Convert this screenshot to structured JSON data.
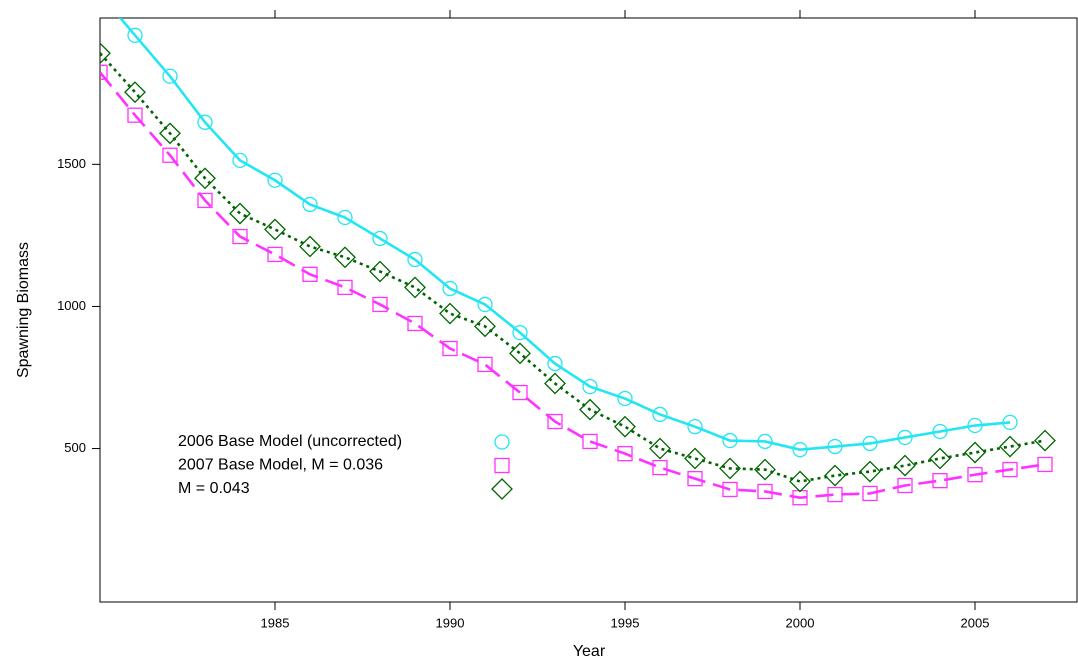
{
  "chart_data": {
    "type": "line",
    "x_label": "Year",
    "y_label": "Spawning Biomass",
    "x": [
      1980,
      1981,
      1982,
      1983,
      1984,
      1985,
      1986,
      1987,
      1988,
      1989,
      1990,
      1991,
      1992,
      1993,
      1994,
      1995,
      1996,
      1997,
      1998,
      1999,
      2000,
      2001,
      2002,
      2003,
      2004,
      2005,
      2006,
      2007
    ],
    "xlim": [
      1980,
      2008
    ],
    "xticks": [
      1985,
      1990,
      1995,
      2000,
      2005
    ],
    "ylim": [
      -40,
      2015
    ],
    "yticks": [
      500,
      1000,
      1500
    ],
    "series": [
      {
        "name": "2006 Base Model (uncorrected)",
        "color": "#22e6f2",
        "marker": "circle",
        "dash": "solid",
        "values": [
          2100,
          1954,
          1810,
          1648,
          1514,
          1444,
          1359,
          1313,
          1239,
          1165,
          1063,
          1007,
          908,
          799,
          718,
          676,
          620,
          577,
          528,
          525,
          496,
          507,
          518,
          539,
          560,
          581,
          592,
          null
        ]
      },
      {
        "name": "2007 Base Model, M = 0.036",
        "color": "#ff33ff",
        "marker": "square",
        "dash": "dashed",
        "values": [
          1824,
          1673,
          1532,
          1373,
          1246,
          1183,
          1113,
          1067,
          1007,
          940,
          852,
          796,
          697,
          595,
          525,
          482,
          433,
          394,
          356,
          349,
          327,
          338,
          342,
          370,
          387,
          408,
          426,
          444
        ]
      },
      {
        "name": "M = 0.043",
        "color": "#006400",
        "marker": "diamond",
        "dash": "dotted",
        "values": [
          1891,
          1754,
          1609,
          1451,
          1327,
          1271,
          1211,
          1173,
          1123,
          1067,
          975,
          930,
          835,
          729,
          637,
          577,
          500,
          465,
          430,
          426,
          384,
          405,
          419,
          440,
          465,
          486,
          507,
          528
        ]
      }
    ]
  }
}
